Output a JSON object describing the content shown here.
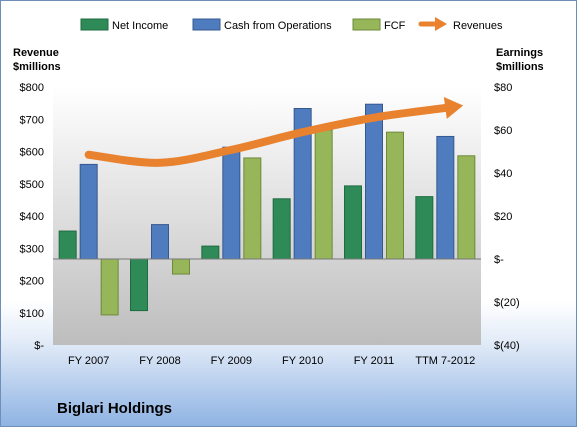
{
  "company_name": "Biglari Holdings",
  "colors": {
    "net_income": "#2e8b57",
    "cash_from_operations": "#4f7bbf",
    "fcf": "#97b65a",
    "revenues": "#e8822e"
  },
  "chart_data": {
    "type": "bar",
    "categories": [
      "FY 2007",
      "FY 2008",
      "FY 2009",
      "FY 2010",
      "FY 2011",
      "TTM 7-2012"
    ],
    "left_axis": {
      "label_line1": "Revenue",
      "label_line2": "$millions",
      "ticks": [
        "$-",
        "$100",
        "$200",
        "$300",
        "$400",
        "$500",
        "$600",
        "$700",
        "$800"
      ],
      "ylim": [
        0,
        800
      ]
    },
    "right_axis": {
      "label_line1": "Earnings",
      "label_line2": "$millions",
      "ticks": [
        "$(40)",
        "$(20)",
        "$-",
        "$20",
        "$40",
        "$60",
        "$80"
      ],
      "ylim": [
        -40,
        80
      ]
    },
    "series": [
      {
        "name": "Net Income",
        "axis": "right",
        "kind": "bar",
        "values": [
          13,
          -24,
          6,
          28,
          34,
          29
        ]
      },
      {
        "name": "Cash from Operations",
        "axis": "right",
        "kind": "bar",
        "values": [
          44,
          16,
          52,
          70,
          72,
          57
        ]
      },
      {
        "name": "FCF",
        "axis": "right",
        "kind": "bar",
        "values": [
          -26,
          -7,
          47,
          60,
          59,
          48
        ]
      },
      {
        "name": "Revenues",
        "axis": "left",
        "kind": "line",
        "values": [
          590,
          565,
          605,
          660,
          705,
          735
        ]
      }
    ],
    "legend_position": "top",
    "grid": false
  }
}
